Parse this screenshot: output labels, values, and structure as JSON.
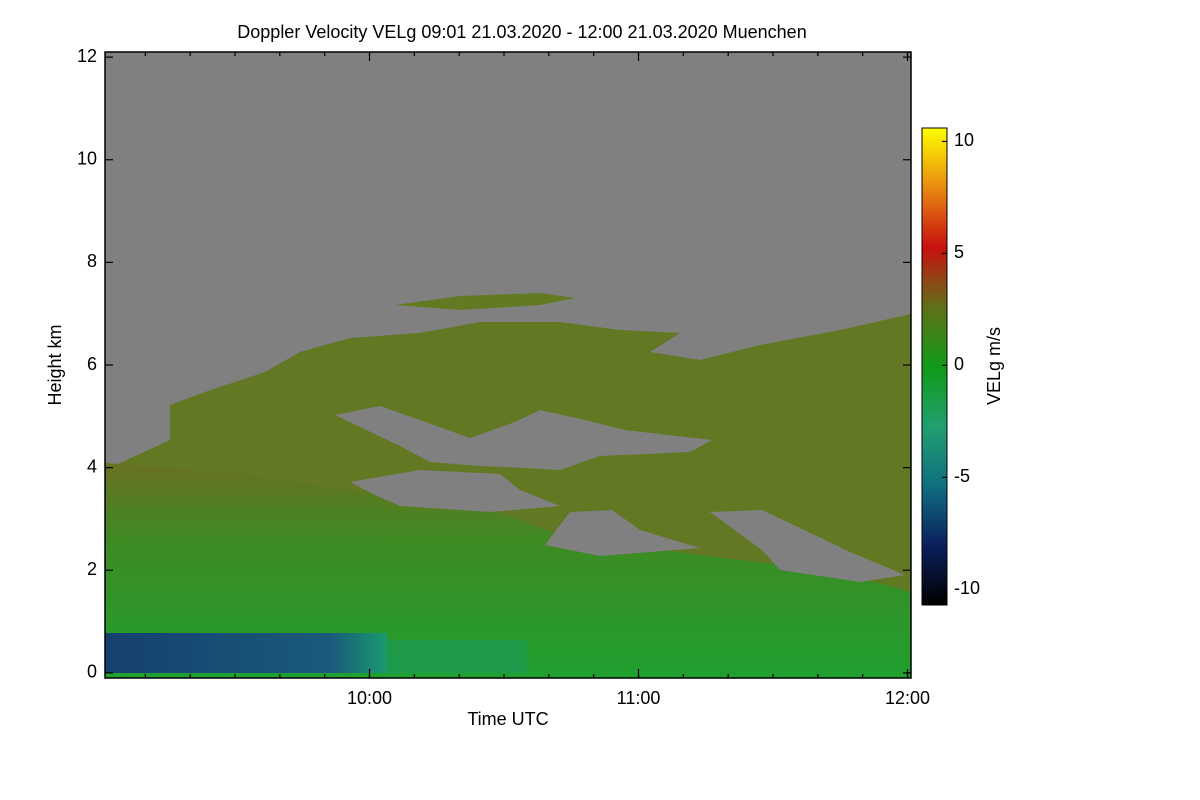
{
  "chart_data": {
    "type": "heatmap",
    "title": "Doppler Velocity VELg   09:01 21.03.2020 - 12:00 21.03.2020 Muenchen",
    "xlabel": "Time UTC",
    "ylabel": "Height km",
    "xlim": [
      9.0167,
      12.013
    ],
    "xticks": [
      {
        "value": 10,
        "label": "10:00"
      },
      {
        "value": 11,
        "label": "11:00"
      },
      {
        "value": 12,
        "label": "12:00"
      }
    ],
    "ylim": [
      -0.1,
      12.1
    ],
    "yticks": [
      0,
      2,
      4,
      6,
      8,
      10,
      12
    ],
    "colorbar": {
      "label": "VELg m/s",
      "zlim": [
        -10.7,
        10.6
      ],
      "ticks": [
        -10,
        -5,
        0,
        5,
        10
      ],
      "colors": [
        "#000000",
        "#0c1f5c",
        "#0f6f80",
        "#20a070",
        "#109a18",
        "#617018",
        "#c81010",
        "#e88a10",
        "#ffff00"
      ]
    }
  }
}
